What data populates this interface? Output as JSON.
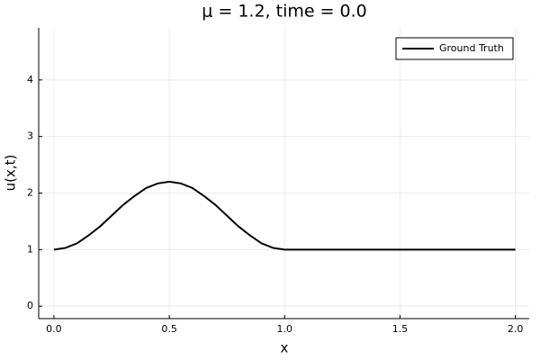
{
  "chart_data": {
    "type": "line",
    "title": "μ = 1.2, time = 0.0",
    "xlabel": "x",
    "ylabel": "u(x,t)",
    "x": [
      0,
      0.05,
      0.1,
      0.15,
      0.2,
      0.25,
      0.3,
      0.35,
      0.4,
      0.45,
      0.5,
      0.55,
      0.6,
      0.65,
      0.7,
      0.75,
      0.8,
      0.85,
      0.9,
      0.95,
      1.0,
      1.1,
      1.2,
      1.3,
      1.4,
      1.5,
      1.6,
      1.7,
      1.8,
      1.9,
      2.0
    ],
    "series": [
      {
        "name": "Ground Truth",
        "color": "#000000",
        "values": [
          1.0,
          1.03,
          1.11,
          1.25,
          1.41,
          1.6,
          1.79,
          1.95,
          2.09,
          2.17,
          2.2,
          2.17,
          2.09,
          1.95,
          1.79,
          1.6,
          1.41,
          1.25,
          1.11,
          1.03,
          1.0,
          1.0,
          1.0,
          1.0,
          1.0,
          1.0,
          1.0,
          1.0,
          1.0,
          1.0,
          1.0
        ]
      }
    ],
    "xlim": [
      -0.066,
      2.06
    ],
    "ylim": [
      -0.22,
      4.92
    ],
    "xticks": [
      {
        "value": 0,
        "label": "0.0"
      },
      {
        "value": 0.5,
        "label": "0.5"
      },
      {
        "value": 1,
        "label": "1.0"
      },
      {
        "value": 1.5,
        "label": "1.5"
      },
      {
        "value": 2,
        "label": "2.0"
      }
    ],
    "yticks": [
      0,
      1,
      2,
      3,
      4
    ],
    "grid": true,
    "legend": "upper right"
  }
}
